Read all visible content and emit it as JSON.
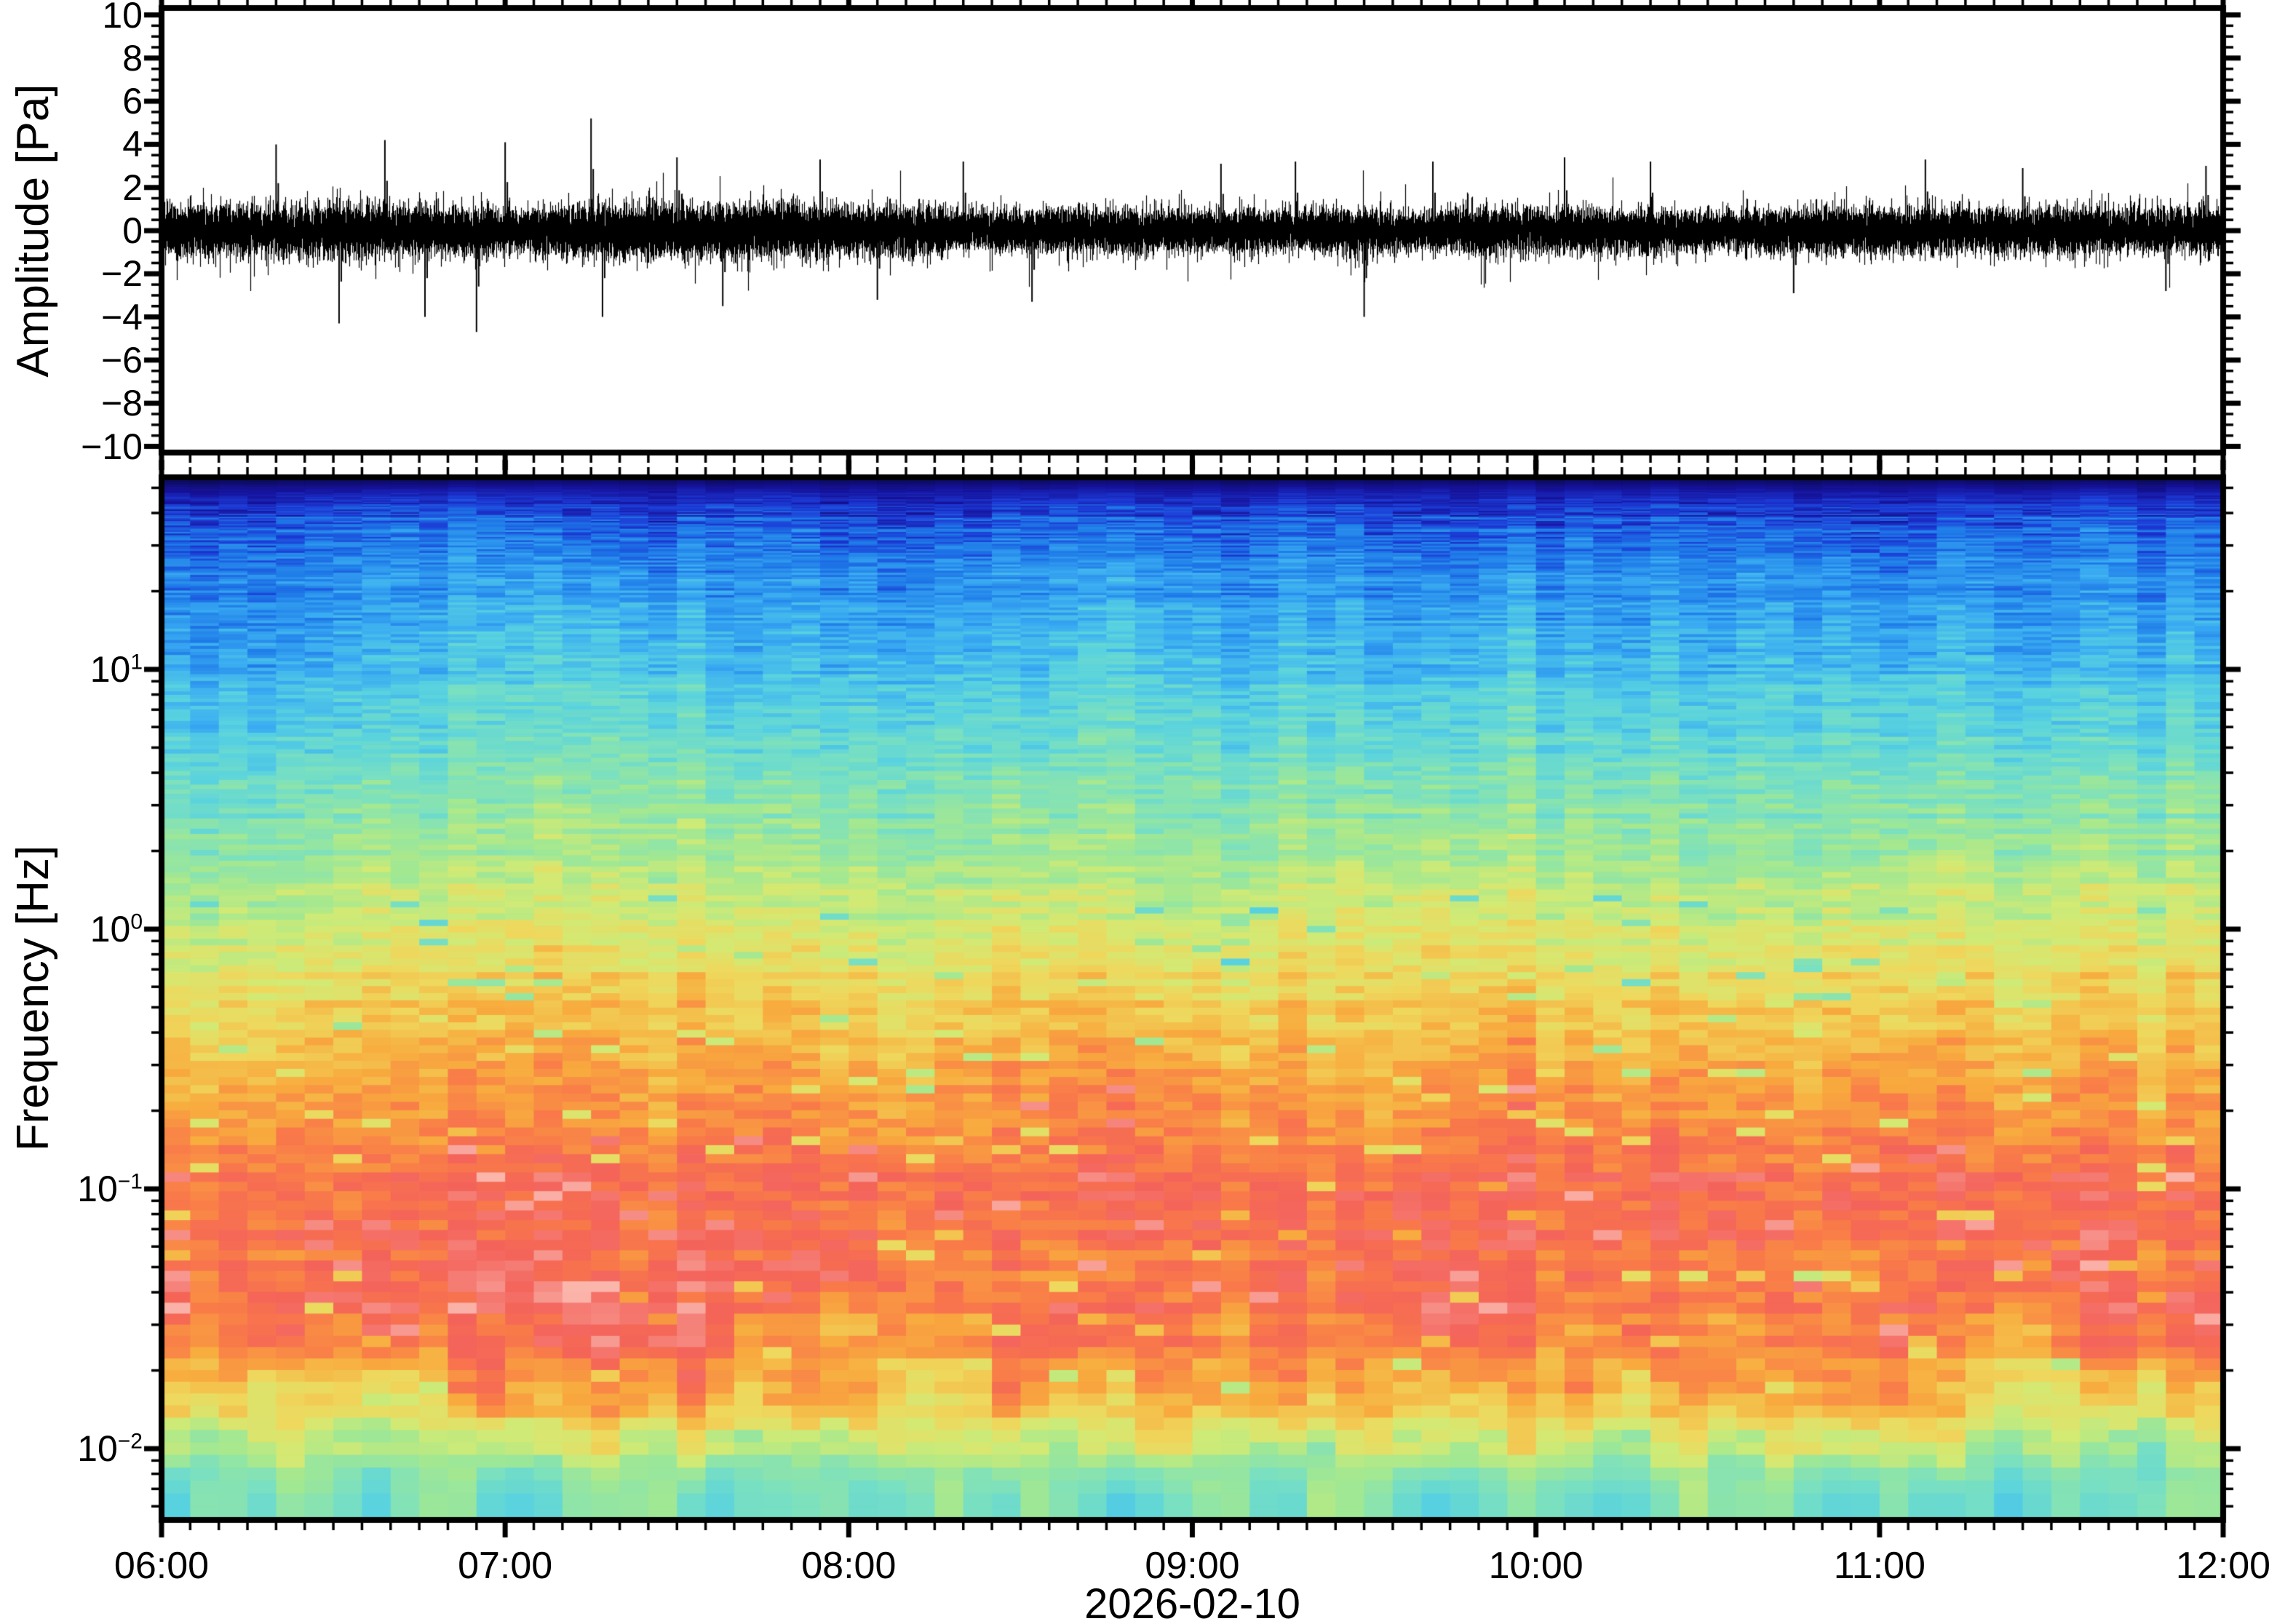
{
  "figure": {
    "background": "#ffffff",
    "frame_color": "#000000",
    "trace_color": "#000000"
  },
  "time_axis": {
    "date_label": "2026-02-10",
    "hour_labels": [
      "06:00",
      "07:00",
      "08:00",
      "09:00",
      "10:00",
      "11:00",
      "12:00"
    ],
    "minor_tick_minutes": 5,
    "start": "06:00",
    "end": "12:00"
  },
  "waveform_panel": {
    "ylabel": "Amplitude [Pa]",
    "ylim": [
      -10,
      10
    ],
    "ytick_major_step": 2,
    "ytick_minor_step": 0.5,
    "yticks": [
      {
        "v": 10,
        "label": "10"
      },
      {
        "v": 8,
        "label": "8"
      },
      {
        "v": 6,
        "label": "6"
      },
      {
        "v": 4,
        "label": "4"
      },
      {
        "v": 2,
        "label": "2"
      },
      {
        "v": 0,
        "label": "0"
      },
      {
        "v": -2,
        "label": "−2"
      },
      {
        "v": -4,
        "label": "−4"
      },
      {
        "v": -6,
        "label": "−6"
      },
      {
        "v": -8,
        "label": "−8"
      },
      {
        "v": -10,
        "label": "−10"
      }
    ]
  },
  "spectrogram_panel": {
    "ylabel": "Frequency [Hz]",
    "yscale": "log",
    "y_range_hz_approx": [
      0.0055,
      55
    ],
    "yticks": [
      {
        "exp": 1,
        "base": "10",
        "exp_label": "1"
      },
      {
        "exp": 0,
        "base": "10",
        "exp_label": "0"
      },
      {
        "exp": -1,
        "base": "10",
        "exp_label": "−1"
      },
      {
        "exp": -2,
        "base": "10",
        "exp_label": "−2"
      }
    ]
  },
  "chart_data": [
    {
      "type": "line",
      "name": "infrasound-waveform",
      "title": "",
      "ylabel": "Amplitude [Pa]",
      "ylim": [
        -10,
        10
      ],
      "x_range": [
        "06:00",
        "12:00"
      ],
      "date": "2026-02-10",
      "noise_std_pa": 0.52,
      "dense_band_halfwidth_pa": 1.3,
      "seed": 20260210,
      "spikes": [
        {
          "t": "06:20",
          "a": 4.0
        },
        {
          "t": "06:31",
          "a": -4.3
        },
        {
          "t": "06:39",
          "a": 4.2
        },
        {
          "t": "06:46",
          "a": -4.0
        },
        {
          "t": "06:55",
          "a": -4.7
        },
        {
          "t": "07:00",
          "a": 4.1
        },
        {
          "t": "07:15",
          "a": 5.2
        },
        {
          "t": "07:17",
          "a": -4.0
        },
        {
          "t": "07:30",
          "a": 3.4
        },
        {
          "t": "07:38",
          "a": -3.5
        },
        {
          "t": "07:55",
          "a": 3.3
        },
        {
          "t": "08:05",
          "a": -3.2
        },
        {
          "t": "08:20",
          "a": 3.2
        },
        {
          "t": "08:32",
          "a": -3.3
        },
        {
          "t": "09:05",
          "a": 3.1
        },
        {
          "t": "09:18",
          "a": 3.2
        },
        {
          "t": "09:30",
          "a": -4.0
        },
        {
          "t": "09:42",
          "a": 3.2
        },
        {
          "t": "10:05",
          "a": 3.4
        },
        {
          "t": "10:20",
          "a": 3.2
        },
        {
          "t": "10:45",
          "a": -2.9
        },
        {
          "t": "11:08",
          "a": 3.3
        },
        {
          "t": "11:25",
          "a": 2.9
        },
        {
          "t": "11:50",
          "a": -2.8
        },
        {
          "t": "11:57",
          "a": 3.0
        }
      ]
    },
    {
      "type": "heatmap",
      "name": "spectrogram",
      "ylabel": "Frequency [Hz]",
      "yscale": "log",
      "ytick_decades": [
        10,
        1,
        0.1,
        0.01
      ],
      "y_range_hz_approx": [
        0.0055,
        55
      ],
      "x_range": [
        "06:00",
        "12:00"
      ],
      "time_columns": 72,
      "window_minutes": 5,
      "seed": 777,
      "colormap_stops": [
        {
          "p": 0.0,
          "c": "#0a0a52"
        },
        {
          "p": 0.05,
          "c": "#151199"
        },
        {
          "p": 0.1,
          "c": "#1c3ad6"
        },
        {
          "p": 0.16,
          "c": "#1e7ae8"
        },
        {
          "p": 0.24,
          "c": "#3aacf2"
        },
        {
          "p": 0.32,
          "c": "#58d2e0"
        },
        {
          "p": 0.4,
          "c": "#7ae0c0"
        },
        {
          "p": 0.48,
          "c": "#a2e892"
        },
        {
          "p": 0.56,
          "c": "#d2ea74"
        },
        {
          "p": 0.64,
          "c": "#efd75c"
        },
        {
          "p": 0.72,
          "c": "#f8ab3e"
        },
        {
          "p": 0.8,
          "c": "#f97a49"
        },
        {
          "p": 0.86,
          "c": "#f4635a"
        },
        {
          "p": 0.93,
          "c": "#f68e86"
        },
        {
          "p": 1.0,
          "c": "#fbb6ac"
        }
      ],
      "power_profile": [
        {
          "t": 0.0,
          "v": 0.0
        },
        {
          "t": 0.006,
          "v": 0.03
        },
        {
          "t": 0.015,
          "v": 0.07
        },
        {
          "t": 0.05,
          "v": 0.15
        },
        {
          "t": 0.11,
          "v": 0.21
        },
        {
          "t": 0.19,
          "v": 0.29
        },
        {
          "t": 0.27,
          "v": 0.38
        },
        {
          "t": 0.35,
          "v": 0.47
        },
        {
          "t": 0.43,
          "v": 0.57
        },
        {
          "t": 0.5,
          "v": 0.66
        },
        {
          "t": 0.56,
          "v": 0.73
        },
        {
          "t": 0.62,
          "v": 0.79
        },
        {
          "t": 0.665,
          "v": 0.835
        },
        {
          "t": 0.78,
          "v": 0.84
        },
        {
          "t": 0.83,
          "v": 0.8
        },
        {
          "t": 0.88,
          "v": 0.7
        },
        {
          "t": 0.915,
          "v": 0.6
        },
        {
          "t": 0.945,
          "v": 0.5
        },
        {
          "t": 0.975,
          "v": 0.43
        },
        {
          "t": 1.0,
          "v": 0.4
        }
      ],
      "bands": [
        {
          "freq_hz": "40-55",
          "appearance": "dark navy band at top edge"
        },
        {
          "freq_hz": "5-40",
          "appearance": "blue to cyan"
        },
        {
          "freq_hz": "0.5-5",
          "appearance": "green to yellow to orange"
        },
        {
          "freq_hz": "0.03-0.5",
          "appearance": "high power salmon-red with light pink streaks"
        },
        {
          "freq_hz": "0.01-0.03",
          "appearance": "orange-yellow transition"
        },
        {
          "freq_hz": "below 0.01",
          "appearance": "yellow-green and teal columns"
        }
      ]
    }
  ]
}
